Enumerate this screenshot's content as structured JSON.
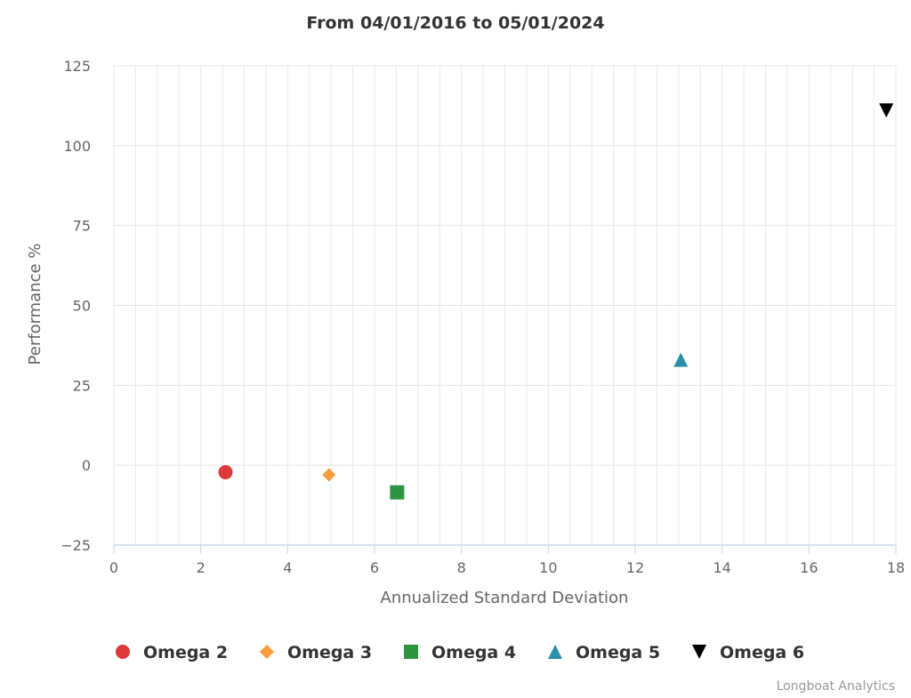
{
  "chart_data": {
    "type": "scatter",
    "title": "From 04/01/2016 to 05/01/2024",
    "xlabel": "Annualized Standard Deviation",
    "ylabel": "Performance %",
    "xlim": [
      0,
      18
    ],
    "ylim": [
      -25,
      125
    ],
    "x_ticks": [
      0,
      2,
      4,
      6,
      8,
      10,
      12,
      14,
      16,
      18
    ],
    "y_ticks": [
      -25,
      0,
      25,
      50,
      75,
      100,
      125
    ],
    "x_tick_labels": [
      "0",
      "2",
      "4",
      "6",
      "8",
      "10",
      "12",
      "14",
      "16",
      "18"
    ],
    "y_tick_labels": [
      "−25",
      "0",
      "25",
      "50",
      "75",
      "100",
      "125"
    ],
    "grid": true,
    "legend_position": "bottom",
    "series": [
      {
        "name": "Omega 2",
        "marker": "circle",
        "color": "#dd3b3b",
        "points": [
          {
            "x": 2.57,
            "y": -2.2
          }
        ]
      },
      {
        "name": "Omega 3",
        "marker": "diamond",
        "color": "#fb9d3c",
        "points": [
          {
            "x": 4.95,
            "y": -3.0
          }
        ]
      },
      {
        "name": "Omega 4",
        "marker": "square",
        "color": "#2e9441",
        "points": [
          {
            "x": 6.52,
            "y": -8.5
          }
        ]
      },
      {
        "name": "Omega 5",
        "marker": "triangle",
        "color": "#2a8fa8",
        "points": [
          {
            "x": 13.05,
            "y": 33.0
          }
        ]
      },
      {
        "name": "Omega 6",
        "marker": "triangle-down",
        "color": "#000000",
        "points": [
          {
            "x": 17.78,
            "y": 111.0
          }
        ]
      }
    ],
    "credit": "Longboat Analytics"
  }
}
